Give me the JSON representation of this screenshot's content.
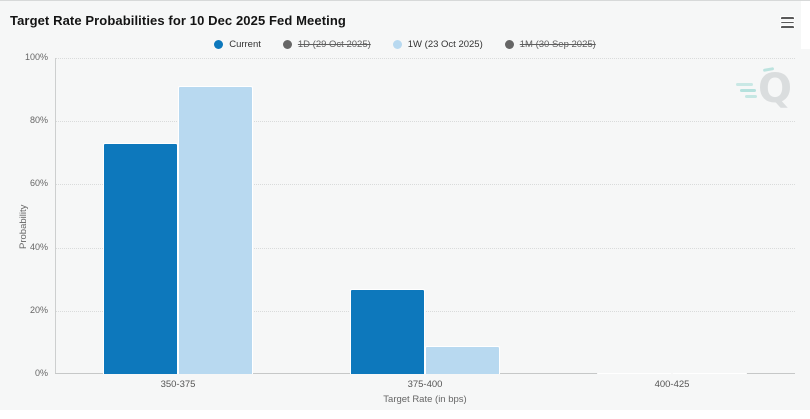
{
  "chart": {
    "title": "Target Rate Probabilities for 10 Dec 2025 Fed Meeting"
  },
  "legend": {
    "items": [
      {
        "label": "Current",
        "color": "#0d78bc",
        "disabled": false
      },
      {
        "label": "1D (29 Oct 2025)",
        "color": "#666666",
        "disabled": true
      },
      {
        "label": "1W (23 Oct 2025)",
        "color": "#b8d9f0",
        "disabled": false
      },
      {
        "label": "1M (30 Sep 2025)",
        "color": "#666666",
        "disabled": true
      }
    ]
  },
  "axes": {
    "y": {
      "title": "Probability",
      "ticks": [
        "0%",
        "20%",
        "40%",
        "60%",
        "80%",
        "100%"
      ]
    },
    "x": {
      "title": "Target Rate (in bps)"
    }
  },
  "watermark": {
    "letter": "Q"
  },
  "chart_data": {
    "type": "bar",
    "title": "Target Rate Probabilities for 10 Dec 2025 Fed Meeting",
    "categories": [
      "350-375",
      "375-400",
      "400-425"
    ],
    "series": [
      {
        "name": "Current",
        "color": "#0d78bc",
        "values": [
          73,
          27,
          0.1
        ]
      },
      {
        "name": "1W (23 Oct 2025)",
        "color": "#b8d9f0",
        "values": [
          91,
          8.8,
          0.4
        ]
      }
    ],
    "hidden_series": [
      "1D (29 Oct 2025)",
      "1M (30 Sep 2025)"
    ],
    "xlabel": "Target Rate (in bps)",
    "ylabel": "Probability",
    "ylim": [
      0,
      100
    ],
    "grid": "horizontal dotted lines every 20%",
    "legend_position": "top"
  }
}
